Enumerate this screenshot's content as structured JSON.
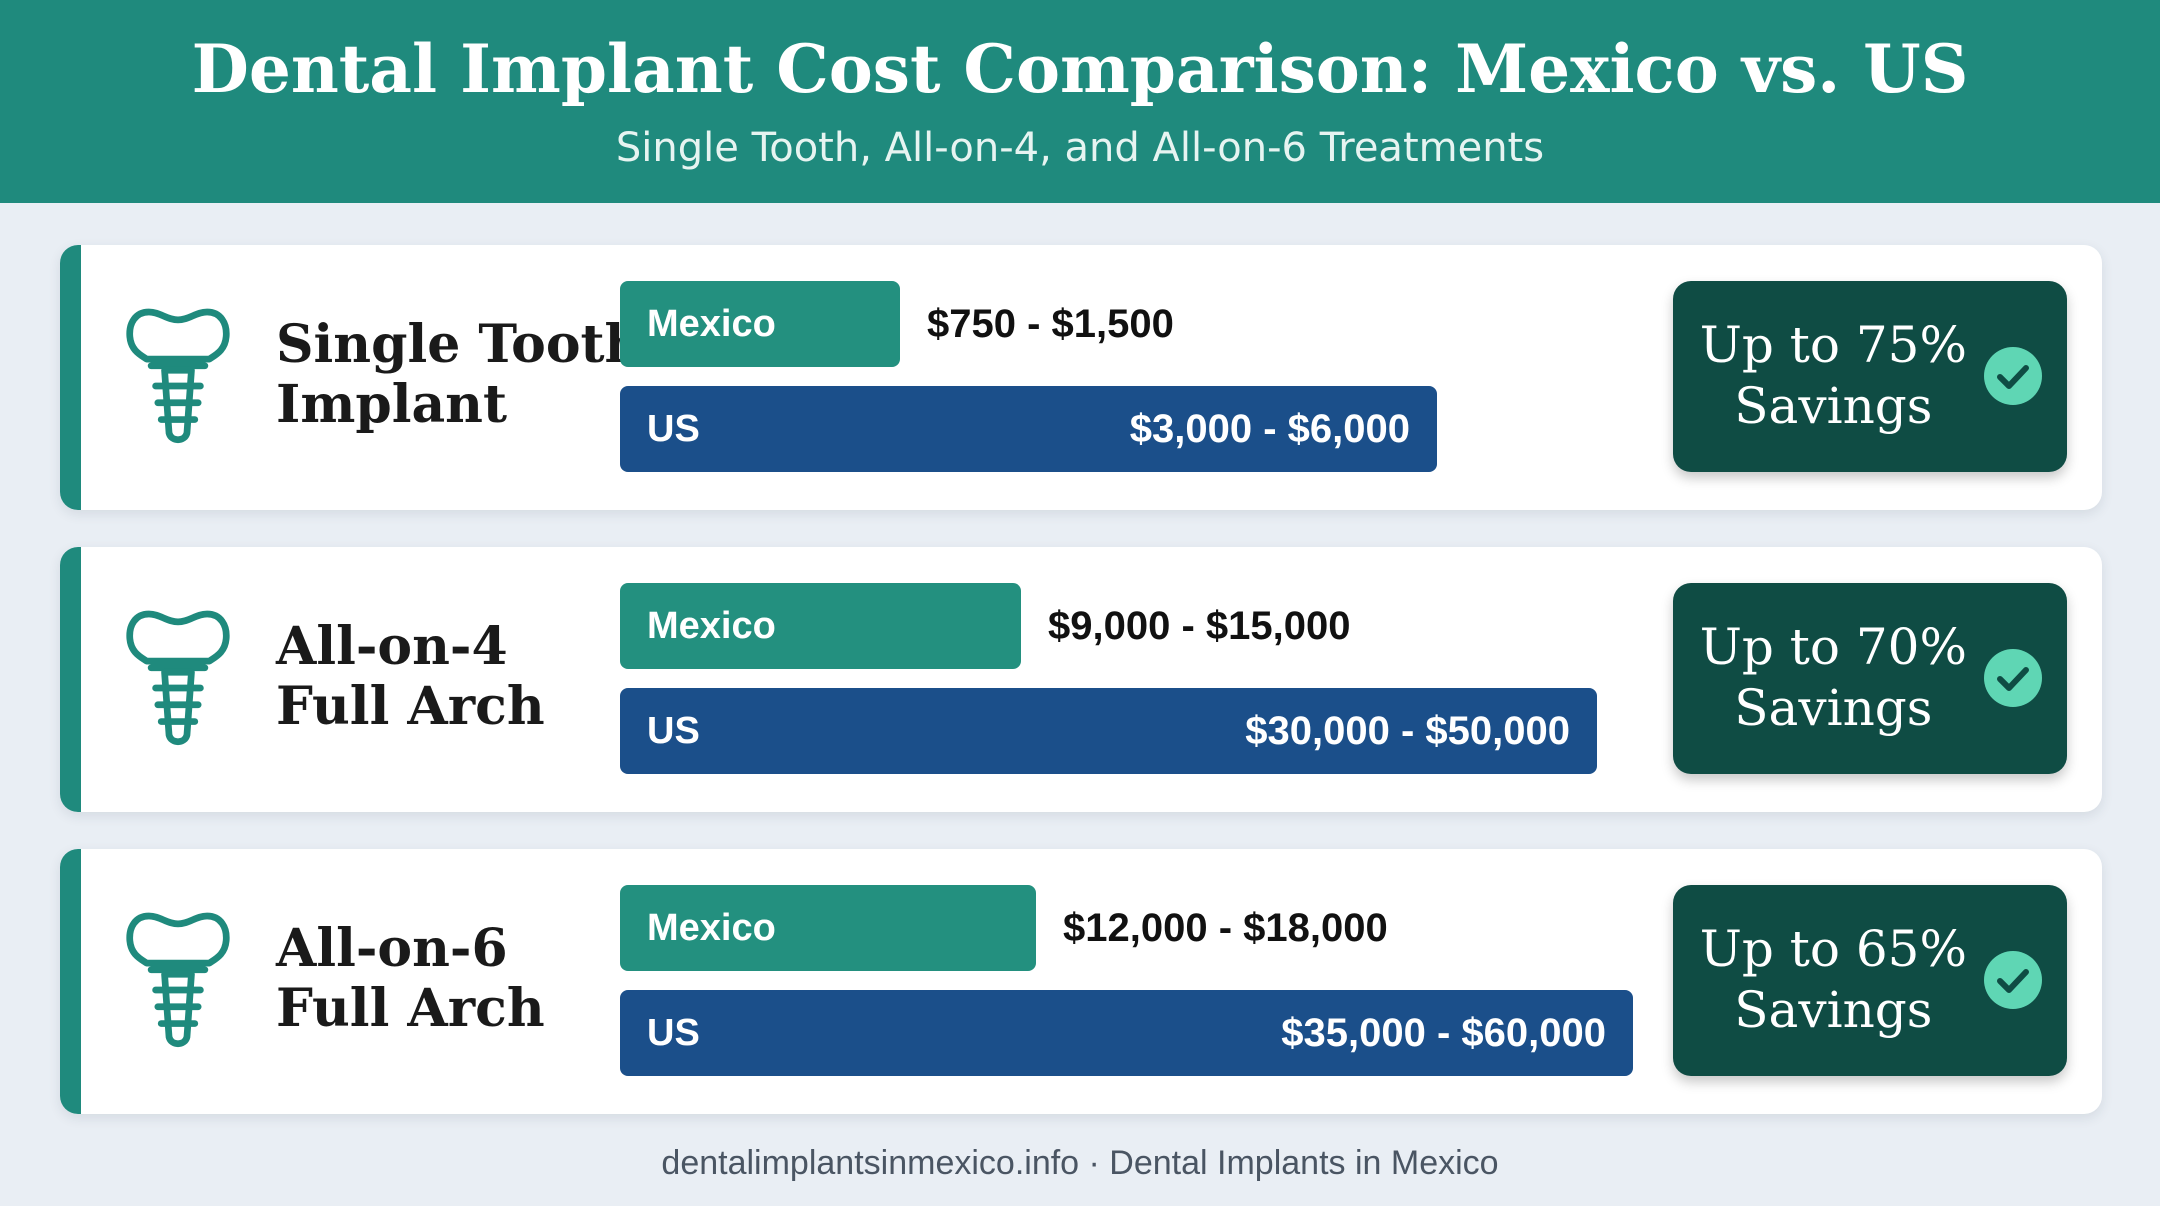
{
  "header": {
    "title": "Dental Implant Cost Comparison: Mexico vs. US",
    "subtitle": "Single Tooth, All-on-4, and All-on-6 Treatments"
  },
  "chart_data": {
    "type": "bar",
    "title": "Dental Implant Cost Comparison: Mexico vs. US",
    "subtitle": "Single Tooth, All-on-4, and All-on-6 Treatments",
    "categories": [
      {
        "name_line1": "Single Tooth",
        "name_line2": "Implant",
        "mexico_label": "Mexico",
        "mexico_range": "$750 - $1,500",
        "mexico_min": 750,
        "mexico_max": 1500,
        "us_label": "US",
        "us_range": "$3,000 - $6,000",
        "us_min": 3000,
        "us_max": 6000,
        "savings_line1": "Up to 75%",
        "savings_line2": "Savings"
      },
      {
        "name_line1": "All-on-4",
        "name_line2": "Full Arch",
        "mexico_label": "Mexico",
        "mexico_range": "$9,000 - $15,000",
        "mexico_min": 9000,
        "mexico_max": 15000,
        "us_label": "US",
        "us_range": "$30,000 - $50,000",
        "us_min": 30000,
        "us_max": 50000,
        "savings_line1": "Up to 70%",
        "savings_line2": "Savings"
      },
      {
        "name_line1": "All-on-6",
        "name_line2": "Full Arch",
        "mexico_label": "Mexico",
        "mexico_range": "$12,000 - $18,000",
        "mexico_min": 12000,
        "mexico_max": 18000,
        "us_label": "US",
        "us_range": "$35,000 - $60,000",
        "us_min": 35000,
        "us_max": 60000,
        "savings_line1": "Up to 65%",
        "savings_line2": "Savings"
      }
    ]
  },
  "colors": {
    "header": "#1f8a7d",
    "mexico_bar": "#23907f",
    "us_bar": "#1b4f8a",
    "badge": "#0f4c44",
    "check": "#5fd6b4",
    "icon_stroke": "#1f8a7d"
  },
  "icons": {
    "row": "tooth-implant-icon",
    "badge": "checkmark-icon"
  },
  "footer": {
    "text": "dentalimplantsinmexico.info · Dental Implants in Mexico"
  }
}
